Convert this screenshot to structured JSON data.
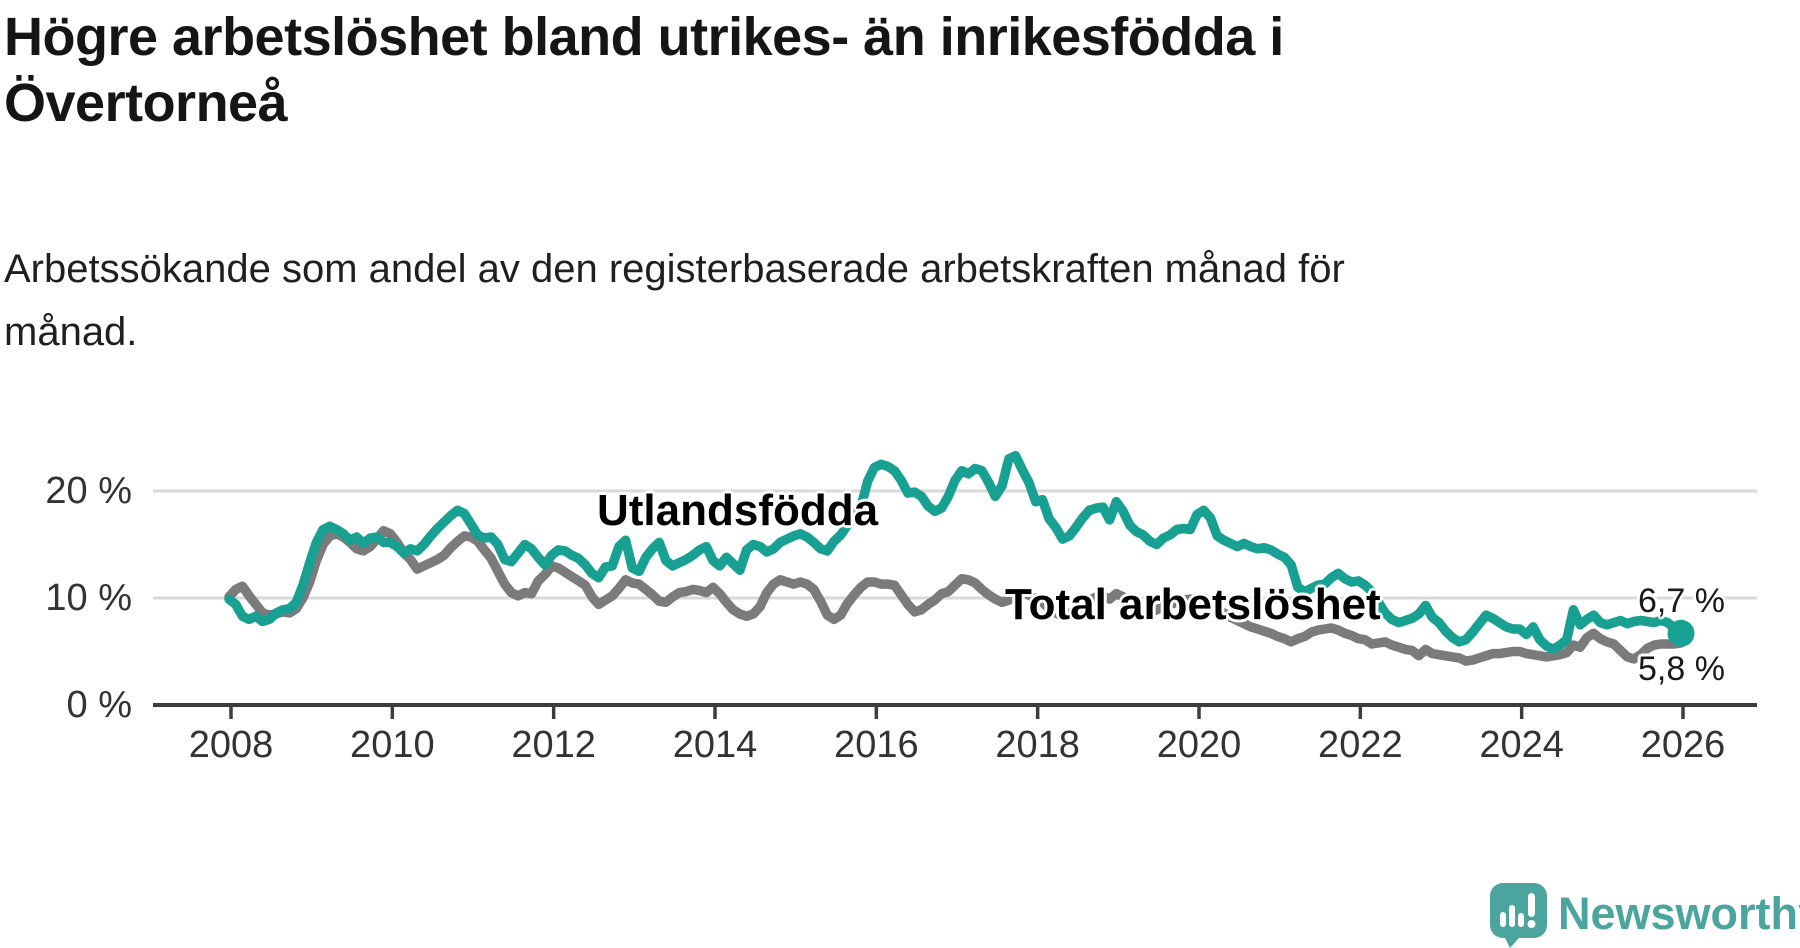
{
  "header": {
    "title_lines": [
      "Högre arbetslöshet bland utrikes- än inrikesfödda i",
      "Övertorneå"
    ],
    "subtitle_lines": [
      "Arbetssökande som andel av den registerbaserade arbetskraften månad för",
      "månad."
    ]
  },
  "colors": {
    "foreign_born": "#18A093",
    "total": "#7B7B7B",
    "grid": "#D9D9D9",
    "axis": "#3D3D3D",
    "tick_text": "#333333",
    "title_text": "#151515",
    "logo": "#4BA49D"
  },
  "logo": {
    "wordmark": "Newsworthy"
  },
  "chart_data": {
    "type": "line",
    "title": "Högre arbetslöshet bland utrikes- än inrikesfödda i Övertorneå",
    "subtitle": "Arbetssökande som andel av den registerbaserade arbetskraften månad för månad.",
    "unit": "%",
    "frequency": "monthly",
    "start": "2008-01",
    "end": "2026-01",
    "grid": "horizontal",
    "legend_position": "inline-labels",
    "y_axis": {
      "range": [
        0,
        26.5
      ],
      "ticks": [
        {
          "value": 0,
          "label": "0 %"
        },
        {
          "value": 10,
          "label": "10 %"
        },
        {
          "value": 20,
          "label": "20 %"
        }
      ]
    },
    "x_axis": {
      "ticks": [
        {
          "year": 2008,
          "label": "2008"
        },
        {
          "year": 2010,
          "label": "2010"
        },
        {
          "year": 2012,
          "label": "2012"
        },
        {
          "year": 2014,
          "label": "2014"
        },
        {
          "year": 2016,
          "label": "2016"
        },
        {
          "year": 2018,
          "label": "2018"
        },
        {
          "year": 2020,
          "label": "2020"
        },
        {
          "year": 2022,
          "label": "2022"
        },
        {
          "year": 2024,
          "label": "2024"
        },
        {
          "year": 2026,
          "label": "2026"
        }
      ]
    },
    "series": [
      {
        "name": "Utlandsfödda",
        "color": "#18A093",
        "end_label": "6,7 %",
        "end_value": 6.7,
        "end_dot": true,
        "values": [
          9.9,
          9.4,
          8.3,
          8.0,
          8.3,
          7.8,
          8.0,
          8.6,
          8.9,
          9.0,
          9.6,
          11.2,
          13.3,
          15.2,
          16.4,
          16.7,
          16.4,
          16.0,
          15.4,
          15.7,
          15.1,
          15.6,
          15.7,
          15.2,
          15.2,
          14.8,
          14.2,
          14.6,
          14.4,
          15.0,
          15.8,
          16.5,
          17.1,
          17.7,
          18.2,
          17.9,
          16.9,
          15.9,
          15.6,
          15.7,
          15.0,
          13.6,
          13.4,
          14.2,
          15.0,
          14.6,
          13.8,
          13.1,
          14.0,
          14.5,
          14.4,
          14.0,
          13.7,
          13.1,
          12.3,
          11.9,
          12.9,
          13.0,
          14.8,
          15.4,
          12.8,
          12.5,
          13.8,
          14.6,
          15.2,
          13.5,
          13.0,
          13.3,
          13.6,
          14.0,
          14.5,
          14.8,
          13.5,
          13.0,
          13.8,
          13.2,
          12.6,
          14.5,
          15.0,
          14.8,
          14.3,
          14.6,
          15.2,
          15.5,
          15.8,
          16.0,
          15.7,
          15.2,
          14.6,
          14.4,
          15.3,
          15.9,
          16.8,
          17.6,
          18.5,
          20.9,
          22.2,
          22.5,
          22.3,
          21.9,
          21.0,
          19.8,
          19.9,
          19.5,
          18.6,
          18.1,
          18.4,
          19.5,
          21.0,
          21.9,
          21.6,
          22.1,
          21.9,
          20.8,
          19.5,
          20.5,
          23.0,
          23.3,
          22.0,
          20.8,
          19.0,
          19.2,
          17.4,
          16.6,
          15.5,
          15.8,
          16.6,
          17.5,
          18.2,
          18.4,
          18.5,
          17.3,
          19.0,
          18.1,
          16.8,
          16.2,
          15.9,
          15.3,
          15.0,
          15.6,
          15.9,
          16.4,
          16.5,
          16.4,
          17.8,
          18.2,
          17.5,
          15.8,
          15.4,
          15.1,
          14.8,
          15.1,
          14.8,
          14.6,
          14.7,
          14.5,
          14.1,
          13.8,
          13.1,
          11.0,
          10.6,
          10.9,
          11.2,
          11.3,
          11.9,
          12.3,
          11.8,
          11.5,
          11.6,
          11.2,
          10.6,
          9.6,
          8.6,
          8.0,
          7.7,
          7.9,
          8.1,
          8.5,
          9.3,
          8.2,
          7.7,
          6.9,
          6.3,
          5.9,
          6.1,
          6.8,
          7.6,
          8.4,
          8.1,
          7.7,
          7.3,
          7.1,
          7.1,
          6.6,
          7.3,
          6.1,
          5.5,
          5.2,
          5.6,
          6.1,
          8.9,
          7.5,
          8.0,
          8.4,
          7.7,
          7.5,
          7.7,
          7.9,
          7.6,
          7.8,
          7.9,
          7.8,
          7.7,
          7.9,
          7.7,
          7.2,
          6.7
        ]
      },
      {
        "name": "Total arbetslöshet",
        "color": "#7B7B7B",
        "end_label": "5,8 %",
        "end_value": 5.8,
        "end_dot": false,
        "values": [
          10.1,
          10.8,
          11.1,
          10.2,
          9.4,
          8.6,
          8.4,
          8.5,
          8.7,
          8.6,
          9.0,
          10.0,
          11.5,
          13.5,
          15.0,
          15.8,
          16.0,
          15.7,
          15.2,
          14.6,
          14.4,
          14.8,
          15.5,
          16.3,
          16.0,
          15.2,
          14.2,
          13.6,
          12.7,
          13.0,
          13.3,
          13.6,
          14.0,
          14.7,
          15.3,
          15.8,
          15.7,
          15.3,
          14.5,
          13.7,
          12.5,
          11.3,
          10.5,
          10.2,
          10.5,
          10.4,
          11.6,
          12.2,
          13.0,
          12.8,
          12.4,
          12.0,
          11.6,
          11.2,
          10.1,
          9.4,
          9.8,
          10.2,
          10.9,
          11.7,
          11.4,
          11.3,
          10.8,
          10.3,
          9.7,
          9.6,
          10.1,
          10.5,
          10.6,
          10.8,
          10.7,
          10.5,
          11.0,
          10.4,
          9.6,
          8.9,
          8.5,
          8.3,
          8.5,
          9.2,
          10.5,
          11.3,
          11.7,
          11.5,
          11.3,
          11.5,
          11.3,
          10.8,
          9.7,
          8.4,
          8.0,
          8.4,
          9.5,
          10.3,
          11.0,
          11.5,
          11.5,
          11.3,
          11.3,
          11.2,
          10.3,
          9.4,
          8.7,
          8.9,
          9.4,
          9.8,
          10.4,
          10.6,
          11.2,
          11.8,
          11.7,
          11.4,
          10.8,
          10.3,
          9.9,
          9.6,
          9.8,
          10.2,
          10.5,
          10.3,
          9.9,
          9.6,
          9.0,
          8.6,
          8.3,
          8.5,
          8.9,
          9.3,
          9.8,
          10.1,
          10.2,
          9.9,
          10.4,
          10.1,
          9.6,
          9.2,
          8.9,
          8.7,
          8.9,
          9.2,
          9.4,
          9.6,
          9.8,
          9.9,
          9.8,
          10.0,
          9.6,
          9.0,
          8.6,
          8.2,
          7.9,
          7.6,
          7.3,
          7.1,
          6.9,
          6.7,
          6.4,
          6.2,
          5.9,
          6.2,
          6.4,
          6.8,
          7.0,
          7.1,
          7.2,
          7.0,
          6.7,
          6.5,
          6.2,
          6.1,
          5.7,
          5.8,
          5.9,
          5.6,
          5.4,
          5.2,
          5.1,
          4.6,
          5.2,
          4.8,
          4.7,
          4.6,
          4.5,
          4.4,
          4.1,
          4.2,
          4.4,
          4.6,
          4.8,
          4.8,
          4.9,
          5.0,
          5.0,
          4.8,
          4.7,
          4.6,
          4.5,
          4.6,
          4.7,
          4.9,
          5.6,
          5.4,
          6.3,
          6.7,
          6.2,
          5.9,
          5.7,
          5.1,
          4.5,
          4.3,
          4.7,
          5.3,
          5.6,
          5.7,
          5.7,
          5.7,
          5.8
        ]
      }
    ]
  }
}
